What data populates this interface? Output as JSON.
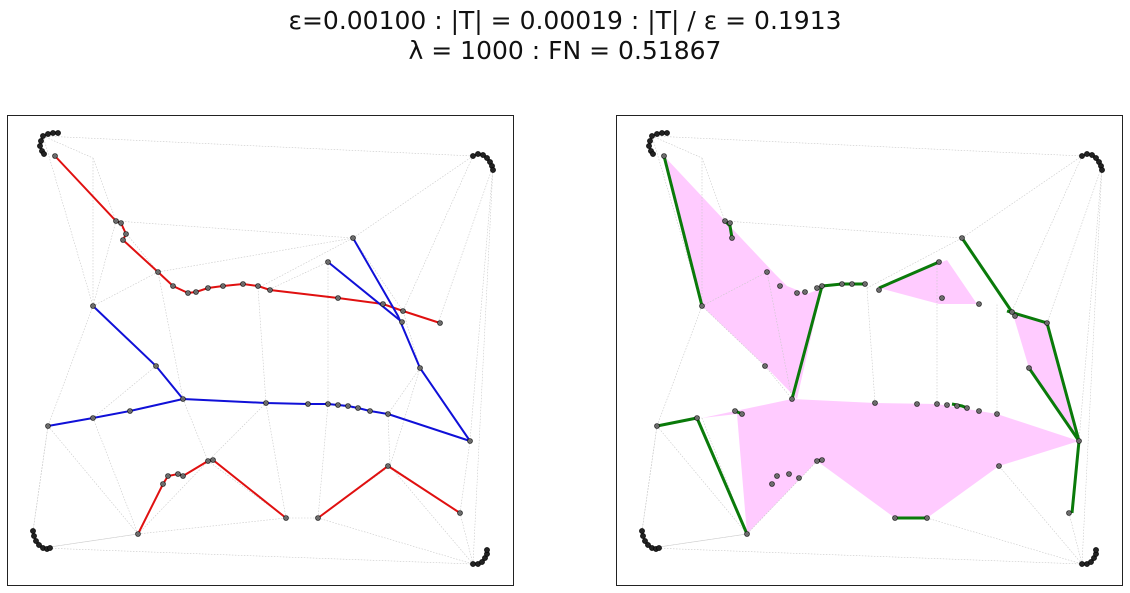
{
  "figure": {
    "title_line1": "ε=0.00100 : |T| = 0.00019 : |T| / ε = 0.1913",
    "title_line2": "λ = 1000 : FN = 0.51867"
  },
  "colors": {
    "mesh": "#c8c8c8",
    "point_fill": "#6b6b6b",
    "point_edge": "#111111",
    "red_path": "#e01010",
    "blue_path": "#1010d8",
    "green_path": "#0a7a0a",
    "fill_region": "#ffc8ff"
  }
}
